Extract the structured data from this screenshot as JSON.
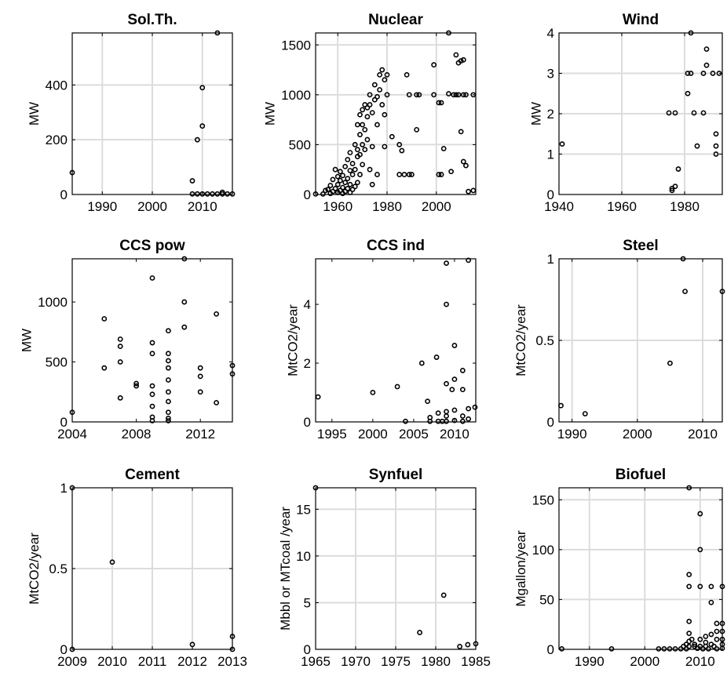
{
  "chart_data": [
    {
      "type": "scatter",
      "title": "Sol.Th.",
      "ylabel": "MW",
      "xlim": [
        1984,
        2016
      ],
      "ylim": [
        0,
        590
      ],
      "xticks": [
        "1990",
        "2000",
        "2010"
      ],
      "xtick_values": [
        1990,
        2000,
        2010
      ],
      "yticks": [
        "0",
        "200",
        "400"
      ],
      "ytick_values": [
        0,
        200,
        400
      ],
      "grid": true,
      "points": [
        [
          1984,
          80
        ],
        [
          2008,
          50
        ],
        [
          2008,
          2
        ],
        [
          2009,
          200
        ],
        [
          2009,
          2
        ],
        [
          2010,
          390
        ],
        [
          2010,
          250
        ],
        [
          2010,
          2
        ],
        [
          2011,
          2
        ],
        [
          2012,
          2
        ],
        [
          2013,
          590
        ],
        [
          2013,
          2
        ],
        [
          2014,
          8
        ],
        [
          2014,
          2
        ],
        [
          2015,
          2
        ],
        [
          2016,
          2
        ]
      ]
    },
    {
      "type": "scatter",
      "title": "Nuclear",
      "ylabel": "MW",
      "xlim": [
        1951,
        2016
      ],
      "ylim": [
        0,
        1620
      ],
      "xticks": [
        "1960",
        "1980",
        "2000"
      ],
      "xtick_values": [
        1960,
        1980,
        2000
      ],
      "yticks": [
        "0",
        "500",
        "1000",
        "1500"
      ],
      "ytick_values": [
        0,
        500,
        1000,
        1500
      ],
      "grid": true,
      "points": [
        [
          1951,
          5
        ],
        [
          1954,
          5
        ],
        [
          1955,
          40
        ],
        [
          1956,
          50
        ],
        [
          1957,
          10
        ],
        [
          1957,
          90
        ],
        [
          1958,
          30
        ],
        [
          1958,
          150
        ],
        [
          1959,
          60
        ],
        [
          1959,
          250
        ],
        [
          1960,
          20
        ],
        [
          1960,
          100
        ],
        [
          1960,
          180
        ],
        [
          1961,
          40
        ],
        [
          1961,
          140
        ],
        [
          1961,
          230
        ],
        [
          1962,
          10
        ],
        [
          1962,
          70
        ],
        [
          1962,
          190
        ],
        [
          1963,
          30
        ],
        [
          1963,
          120
        ],
        [
          1963,
          280
        ],
        [
          1964,
          60
        ],
        [
          1964,
          160
        ],
        [
          1964,
          350
        ],
        [
          1965,
          20
        ],
        [
          1965,
          100
        ],
        [
          1965,
          240
        ],
        [
          1965,
          420
        ],
        [
          1966,
          50
        ],
        [
          1966,
          200
        ],
        [
          1966,
          310
        ],
        [
          1967,
          80
        ],
        [
          1967,
          250
        ],
        [
          1967,
          500
        ],
        [
          1968,
          120
        ],
        [
          1968,
          380
        ],
        [
          1968,
          450
        ],
        [
          1968,
          700
        ],
        [
          1969,
          200
        ],
        [
          1969,
          400
        ],
        [
          1969,
          600
        ],
        [
          1969,
          800
        ],
        [
          1970,
          300
        ],
        [
          1970,
          500
        ],
        [
          1970,
          700
        ],
        [
          1970,
          850
        ],
        [
          1971,
          450
        ],
        [
          1971,
          650
        ],
        [
          1971,
          900
        ],
        [
          1972,
          550
        ],
        [
          1972,
          780
        ],
        [
          1972,
          870
        ],
        [
          1973,
          250
        ],
        [
          1973,
          900
        ],
        [
          1973,
          1000
        ],
        [
          1974,
          100
        ],
        [
          1974,
          480
        ],
        [
          1974,
          820
        ],
        [
          1975,
          950
        ],
        [
          1975,
          1100
        ],
        [
          1976,
          200
        ],
        [
          1976,
          700
        ],
        [
          1976,
          980
        ],
        [
          1977,
          1050
        ],
        [
          1977,
          1200
        ],
        [
          1978,
          900
        ],
        [
          1978,
          1250
        ],
        [
          1979,
          480
        ],
        [
          1979,
          800
        ],
        [
          1979,
          1150
        ],
        [
          1980,
          1000
        ],
        [
          1980,
          1200
        ],
        [
          1982,
          580
        ],
        [
          1985,
          500
        ],
        [
          1985,
          200
        ],
        [
          1986,
          440
        ],
        [
          1987,
          200
        ],
        [
          1988,
          1200
        ],
        [
          1989,
          1000
        ],
        [
          1989,
          200
        ],
        [
          1990,
          200
        ],
        [
          1992,
          1000
        ],
        [
          1992,
          650
        ],
        [
          1993,
          1000
        ],
        [
          1999,
          1000
        ],
        [
          1999,
          1300
        ],
        [
          2001,
          200
        ],
        [
          2001,
          920
        ],
        [
          2002,
          920
        ],
        [
          2002,
          200
        ],
        [
          2003,
          460
        ],
        [
          2005,
          1620
        ],
        [
          2005,
          1010
        ],
        [
          2006,
          230
        ],
        [
          2007,
          1000
        ],
        [
          2008,
          1000
        ],
        [
          2008,
          1400
        ],
        [
          2009,
          1320
        ],
        [
          2009,
          1000
        ],
        [
          2010,
          630
        ],
        [
          2010,
          1340
        ],
        [
          2011,
          1000
        ],
        [
          2011,
          330
        ],
        [
          2011,
          1350
        ],
        [
          2012,
          1000
        ],
        [
          2012,
          290
        ],
        [
          2013,
          30
        ],
        [
          2015,
          1000
        ],
        [
          2015,
          40
        ]
      ]
    },
    {
      "type": "scatter",
      "title": "Wind",
      "ylabel": "MW",
      "xlim": [
        1940,
        1992
      ],
      "ylim": [
        0,
        4
      ],
      "xticks": [
        "1940",
        "1960",
        "1980"
      ],
      "xtick_values": [
        1940,
        1960,
        1980
      ],
      "yticks": [
        "0",
        "1",
        "2",
        "3",
        "4"
      ],
      "ytick_values": [
        0,
        1,
        2,
        3,
        4
      ],
      "grid": true,
      "points": [
        [
          1941,
          1.25
        ],
        [
          1975,
          2.02
        ],
        [
          1976,
          0.1
        ],
        [
          1976,
          0.15
        ],
        [
          1977,
          2.02
        ],
        [
          1977,
          0.2
        ],
        [
          1978,
          0.63
        ],
        [
          1981,
          2.5
        ],
        [
          1981,
          3
        ],
        [
          1982,
          4
        ],
        [
          1982,
          3
        ],
        [
          1983,
          2.02
        ],
        [
          1984,
          1.2
        ],
        [
          1986,
          2.02
        ],
        [
          1986,
          3
        ],
        [
          1987,
          3.6
        ],
        [
          1987,
          3.2
        ],
        [
          1989,
          3
        ],
        [
          1990,
          1
        ],
        [
          1990,
          1.2
        ],
        [
          1990,
          1.5
        ],
        [
          1991,
          3
        ]
      ]
    },
    {
      "type": "scatter",
      "title": "CCS pow",
      "ylabel": "MW",
      "xlim": [
        2004,
        2014
      ],
      "ylim": [
        0,
        1360
      ],
      "xticks": [
        "2004",
        "2008",
        "2012"
      ],
      "xtick_values": [
        2004,
        2008,
        2012
      ],
      "yticks": [
        "0",
        "500",
        "1000"
      ],
      "ytick_values": [
        0,
        500,
        1000
      ],
      "grid": false,
      "points": [
        [
          2004,
          80
        ],
        [
          2006,
          860
        ],
        [
          2006,
          450
        ],
        [
          2007,
          690
        ],
        [
          2007,
          630
        ],
        [
          2007,
          500
        ],
        [
          2007,
          200
        ],
        [
          2008,
          320
        ],
        [
          2008,
          300
        ],
        [
          2009,
          1200
        ],
        [
          2009,
          660
        ],
        [
          2009,
          570
        ],
        [
          2009,
          300
        ],
        [
          2009,
          230
        ],
        [
          2009,
          130
        ],
        [
          2009,
          40
        ],
        [
          2009,
          10
        ],
        [
          2010,
          760
        ],
        [
          2010,
          570
        ],
        [
          2010,
          510
        ],
        [
          2010,
          450
        ],
        [
          2010,
          350
        ],
        [
          2010,
          250
        ],
        [
          2010,
          170
        ],
        [
          2010,
          80
        ],
        [
          2010,
          30
        ],
        [
          2010,
          10
        ],
        [
          2011,
          1360
        ],
        [
          2011,
          1000
        ],
        [
          2011,
          790
        ],
        [
          2012,
          450
        ],
        [
          2012,
          380
        ],
        [
          2012,
          250
        ],
        [
          2013,
          900
        ],
        [
          2013,
          160
        ],
        [
          2014,
          470
        ],
        [
          2014,
          400
        ]
      ]
    },
    {
      "type": "scatter",
      "title": "CCS ind",
      "ylabel": "MtCO2/year",
      "xlim": [
        1993,
        2012.6
      ],
      "ylim": [
        0,
        5.55
      ],
      "xticks": [
        "1995",
        "2000",
        "2005",
        "2010"
      ],
      "xtick_values": [
        1995,
        2000,
        2005,
        2010
      ],
      "yticks": [
        "0",
        "2",
        "4"
      ],
      "ytick_values": [
        0,
        2,
        4
      ],
      "grid": false,
      "points": [
        [
          1993.3,
          0.85
        ],
        [
          2000,
          1
        ],
        [
          2003,
          1.2
        ],
        [
          2004,
          0.02
        ],
        [
          2006,
          2
        ],
        [
          2006.7,
          0.7
        ],
        [
          2007,
          0.15
        ],
        [
          2007,
          0.02
        ],
        [
          2007.8,
          2.2
        ],
        [
          2008,
          0.3
        ],
        [
          2008,
          0.02
        ],
        [
          2008.5,
          0.02
        ],
        [
          2009,
          5.4
        ],
        [
          2009,
          4
        ],
        [
          2009,
          1.3
        ],
        [
          2009,
          0.35
        ],
        [
          2009,
          0.2
        ],
        [
          2009,
          0.02
        ],
        [
          2009.7,
          1.1
        ],
        [
          2010,
          2.6
        ],
        [
          2010,
          1.45
        ],
        [
          2010,
          0.4
        ],
        [
          2010,
          0.05
        ],
        [
          2011,
          1.75
        ],
        [
          2011,
          1.1
        ],
        [
          2011,
          0.2
        ],
        [
          2011,
          0.02
        ],
        [
          2011.7,
          5.5
        ],
        [
          2011.7,
          0.45
        ],
        [
          2011.7,
          0.1
        ],
        [
          2012.5,
          0.5
        ]
      ]
    },
    {
      "type": "scatter",
      "title": "Steel",
      "ylabel": "MtCO2/year",
      "xlim": [
        1988,
        2013
      ],
      "ylim": [
        0,
        1
      ],
      "xticks": [
        "1990",
        "2000",
        "2010"
      ],
      "xtick_values": [
        1990,
        2000,
        2010
      ],
      "yticks": [
        "0",
        "0.5",
        "1"
      ],
      "ytick_values": [
        0,
        0.5,
        1
      ],
      "grid": true,
      "points": [
        [
          1988.3,
          0.1
        ],
        [
          1992,
          0.05
        ],
        [
          2005,
          0.36
        ],
        [
          2007,
          1
        ],
        [
          2007.3,
          0.8
        ],
        [
          2013,
          0.8
        ]
      ]
    },
    {
      "type": "scatter",
      "title": "Cement",
      "ylabel": "MtCO2/year",
      "xlim": [
        2009,
        2013
      ],
      "ylim": [
        0,
        1
      ],
      "xticks": [
        "2009",
        "2010",
        "2011",
        "2012",
        "2013"
      ],
      "xtick_values": [
        2009,
        2010,
        2011,
        2012,
        2013
      ],
      "yticks": [
        "0",
        "0.5",
        "1"
      ],
      "ytick_values": [
        0,
        0.5,
        1
      ],
      "grid": true,
      "points": [
        [
          2009,
          1
        ],
        [
          2009,
          0
        ],
        [
          2010,
          0.54
        ],
        [
          2012,
          0.03
        ],
        [
          2013,
          0.08
        ],
        [
          2013,
          0
        ]
      ]
    },
    {
      "type": "scatter",
      "title": "Synfuel",
      "ylabel": "Mbbl or MTcoal /year",
      "xlim": [
        1965,
        1985
      ],
      "ylim": [
        0,
        17.3
      ],
      "xticks": [
        "1965",
        "1970",
        "1975",
        "1980",
        "1985"
      ],
      "xtick_values": [
        1965,
        1970,
        1975,
        1980,
        1985
      ],
      "yticks": [
        "0",
        "5",
        "10",
        "15"
      ],
      "ytick_values": [
        0,
        5,
        10,
        15
      ],
      "grid": true,
      "points": [
        [
          1965,
          17.3
        ],
        [
          1978,
          1.8
        ],
        [
          1981,
          5.8
        ],
        [
          1983,
          0.3
        ],
        [
          1984,
          0.5
        ],
        [
          1985,
          0.6
        ]
      ]
    },
    {
      "type": "scatter",
      "title": "Biofuel",
      "ylabel": "Mgallon/year",
      "xlim": [
        1984.5,
        2014
      ],
      "ylim": [
        0,
        162
      ],
      "xticks": [
        "1990",
        "2000",
        "2010"
      ],
      "xtick_values": [
        1990,
        2000,
        2010
      ],
      "yticks": [
        "0",
        "50",
        "100",
        "150"
      ],
      "ytick_values": [
        0,
        50,
        100,
        150
      ],
      "grid": true,
      "points": [
        [
          1985,
          0.5
        ],
        [
          1994,
          0.5
        ],
        [
          2002.5,
          0.5
        ],
        [
          2003.5,
          0.5
        ],
        [
          2004.5,
          0.5
        ],
        [
          2005.5,
          0.5
        ],
        [
          2006.5,
          0.5
        ],
        [
          2007,
          3
        ],
        [
          2007.5,
          0.5
        ],
        [
          2007.5,
          5
        ],
        [
          2008,
          162
        ],
        [
          2008,
          75
        ],
        [
          2008,
          63
        ],
        [
          2008,
          28
        ],
        [
          2008,
          16
        ],
        [
          2008,
          8
        ],
        [
          2008,
          3
        ],
        [
          2008.5,
          10
        ],
        [
          2009,
          5
        ],
        [
          2009,
          3
        ],
        [
          2009.5,
          1
        ],
        [
          2010,
          136
        ],
        [
          2010,
          100
        ],
        [
          2010,
          63
        ],
        [
          2010,
          10
        ],
        [
          2010,
          3
        ],
        [
          2010.5,
          0.5
        ],
        [
          2011,
          13
        ],
        [
          2011,
          7
        ],
        [
          2011,
          3
        ],
        [
          2011.5,
          0.5
        ],
        [
          2012,
          63
        ],
        [
          2012,
          47
        ],
        [
          2012,
          15
        ],
        [
          2012,
          5
        ],
        [
          2012.5,
          3
        ],
        [
          2013,
          0.5
        ],
        [
          2013,
          26
        ],
        [
          2013,
          18
        ],
        [
          2013,
          10
        ],
        [
          2014,
          63
        ],
        [
          2014,
          26
        ],
        [
          2014,
          18
        ],
        [
          2014,
          10
        ],
        [
          2014,
          5
        ],
        [
          2014,
          1
        ]
      ]
    }
  ]
}
